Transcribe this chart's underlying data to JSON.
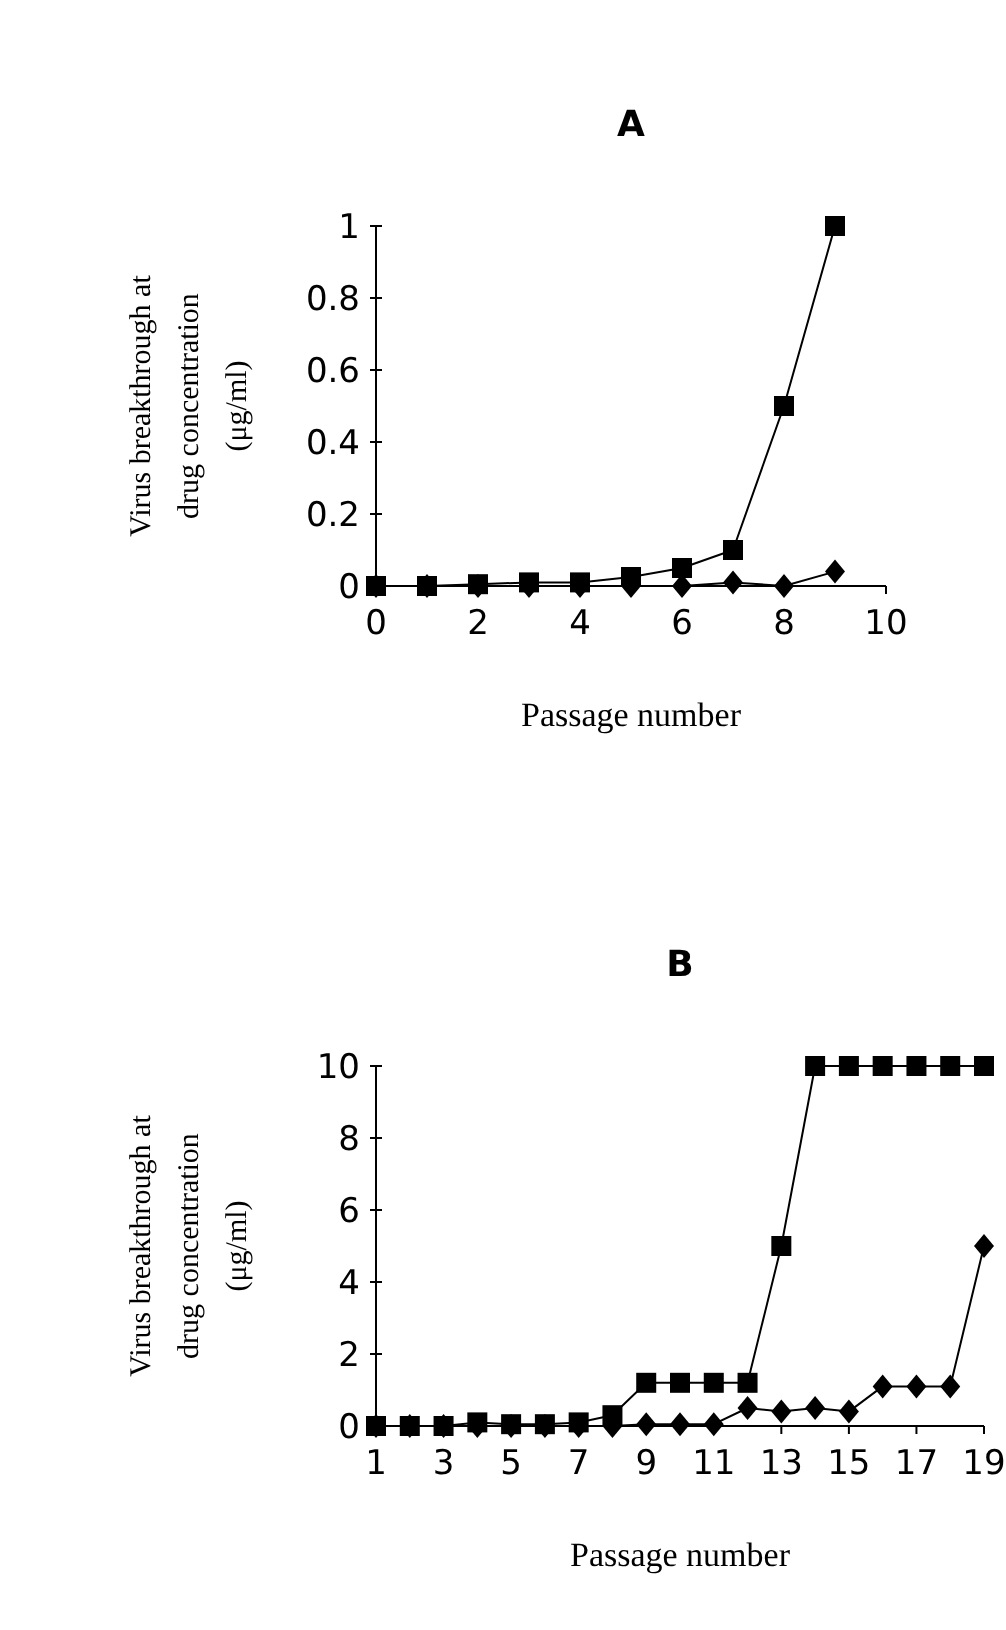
{
  "chart_data": [
    {
      "type": "line",
      "title": "A",
      "xlabel": "Passage number",
      "ylabel": "Virus breakthrough at drug concentration (μg/ml)",
      "x": [
        0,
        1,
        2,
        3,
        4,
        5,
        6,
        7,
        8,
        9
      ],
      "xlim": [
        0,
        10
      ],
      "xticks": [
        0,
        2,
        4,
        6,
        8,
        10
      ],
      "ylim": [
        0,
        1
      ],
      "yticks": [
        0,
        0.2,
        0.4,
        0.6,
        0.8,
        1
      ],
      "tick_labels": true,
      "series": [
        {
          "color": "#000000",
          "marker": "diamond",
          "values": [
            0,
            0,
            0,
            0,
            0,
            0,
            0,
            0.01,
            0,
            0.04
          ]
        },
        {
          "color": "#000000",
          "marker": "square",
          "values": [
            0,
            0,
            0.005,
            0.01,
            0.01,
            0.025,
            0.05,
            0.1,
            0.5,
            1
          ]
        }
      ]
    },
    {
      "type": "line",
      "title": "B",
      "xlabel": "Passage number",
      "ylabel": "Virus breakthrough at drug concentration (μg/ml)",
      "x": [
        1,
        2,
        3,
        4,
        5,
        6,
        7,
        8,
        9,
        10,
        11,
        12,
        13,
        14,
        15,
        16,
        17,
        18,
        19
      ],
      "xlim": [
        1,
        19
      ],
      "xticks": [
        1,
        3,
        5,
        7,
        9,
        11,
        13,
        15,
        17,
        19
      ],
      "ylim": [
        0,
        10
      ],
      "yticks": [
        0,
        2,
        4,
        6,
        8,
        10
      ],
      "series": [
        {
          "color": "#000000",
          "marker": "diamond",
          "values": [
            0,
            0,
            0,
            0,
            0,
            0,
            0,
            0,
            0.05,
            0.05,
            0.05,
            0.5,
            0.4,
            0.5,
            0.4,
            1.1,
            1.1,
            1.1,
            5
          ]
        },
        {
          "color": "#000000",
          "marker": "square",
          "values": [
            0,
            0,
            0,
            0.1,
            0.05,
            0.05,
            0.1,
            0.3,
            1.2,
            1.2,
            1.2,
            1.2,
            5,
            10,
            10,
            10,
            10,
            10,
            10
          ]
        }
      ]
    }
  ]
}
